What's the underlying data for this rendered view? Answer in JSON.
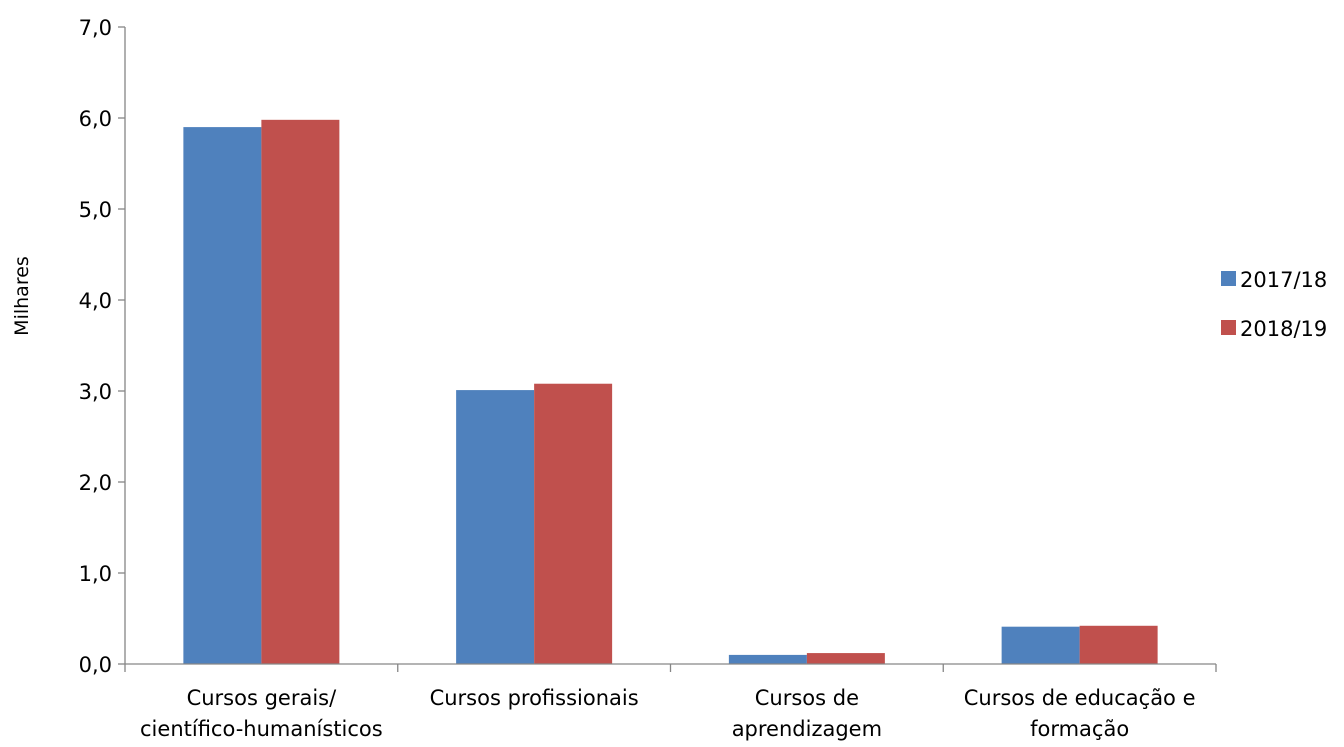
{
  "chart_data": {
    "type": "bar",
    "title": "",
    "xlabel": "",
    "ylabel": "Milhares",
    "ylim": [
      0,
      7
    ],
    "yticks": [
      "0,0",
      "1,0",
      "2,0",
      "3,0",
      "4,0",
      "5,0",
      "6,0",
      "7,0"
    ],
    "grid": false,
    "legend_position": "right",
    "categories": [
      [
        "Cursos gerais/",
        "científico-humanísticos"
      ],
      [
        "Cursos profissionais"
      ],
      [
        "Cursos de",
        "aprendizagem"
      ],
      [
        "Cursos de educação e",
        "formação"
      ]
    ],
    "series": [
      {
        "name": "2017/18",
        "color": "#4f81bd",
        "values": [
          5.9,
          3.01,
          0.1,
          0.41
        ]
      },
      {
        "name": "2018/19",
        "color": "#c0504d",
        "values": [
          5.98,
          3.08,
          0.12,
          0.42
        ]
      }
    ]
  }
}
